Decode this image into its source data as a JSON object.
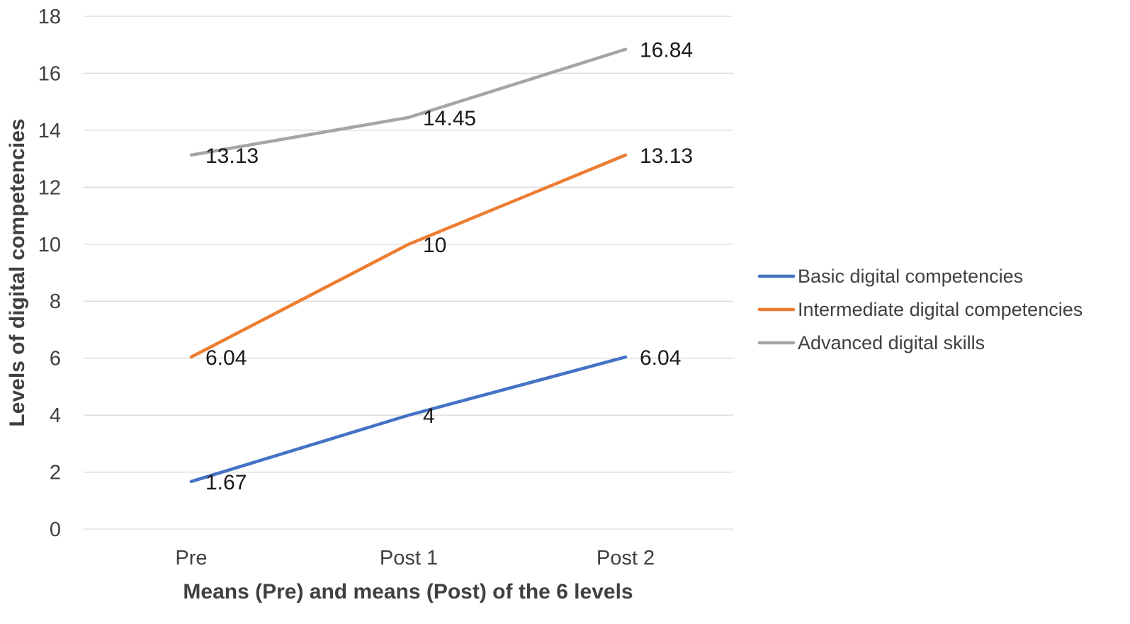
{
  "chart_data": {
    "type": "line",
    "title": "",
    "xlabel": "Means (Pre) and means (Post) of the 6 levels",
    "ylabel": "Levels of digital competencies",
    "categories": [
      "Pre",
      "Post  1",
      "Post 2"
    ],
    "ylim": [
      0,
      18
    ],
    "yticks": [
      0,
      2,
      4,
      6,
      8,
      10,
      12,
      14,
      16,
      18
    ],
    "grid": true,
    "legend_position": "right",
    "series": [
      {
        "name": "Basic digital competencies",
        "color": "#4472C4",
        "values": [
          1.67,
          4,
          6.04
        ],
        "labels": [
          "1.67",
          "4",
          "6.04"
        ]
      },
      {
        "name": "Intermediate digital competencies",
        "color": "#ED7D31",
        "values": [
          6.04,
          10,
          13.13
        ],
        "labels": [
          "6.04",
          "10",
          "13.13"
        ]
      },
      {
        "name": "Advanced digital skills",
        "color": "#A5A5A5",
        "values": [
          13.13,
          14.45,
          16.84
        ],
        "labels": [
          "13.13",
          "14.45",
          "16.84"
        ]
      }
    ]
  }
}
